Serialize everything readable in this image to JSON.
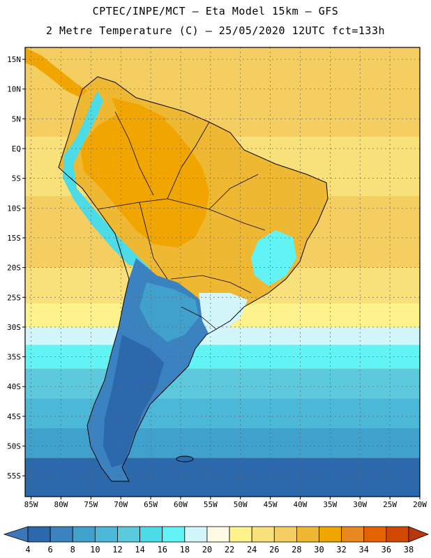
{
  "header": {
    "line1": "CPTEC/INPE/MCT –  Eta Model 15km – GFS",
    "line2": "2 Metre Temperature (C) – 25/05/2020 12UTC fct=133h"
  },
  "axes": {
    "lat_labels": [
      "15N",
      "10N",
      "5N",
      "EQ",
      "5S",
      "10S",
      "15S",
      "20S",
      "25S",
      "30S",
      "35S",
      "40S",
      "45S",
      "50S",
      "55S"
    ],
    "lat_values": [
      15,
      10,
      5,
      0,
      -5,
      -10,
      -15,
      -20,
      -25,
      -30,
      -35,
      -40,
      -45,
      -50,
      -55
    ],
    "lon_labels": [
      "85W",
      "80W",
      "75W",
      "70W",
      "65W",
      "60W",
      "55W",
      "50W",
      "45W",
      "40W",
      "35W",
      "30W",
      "25W",
      "20W"
    ],
    "lon_values": [
      -85,
      -80,
      -75,
      -70,
      -65,
      -60,
      -55,
      -50,
      -45,
      -40,
      -35,
      -30,
      -25,
      -20
    ],
    "lat_range": [
      -58.5,
      17
    ],
    "lon_range": [
      -86,
      -20
    ],
    "grid": "dotted"
  },
  "colorbar": {
    "labels": [
      "4",
      "6",
      "8",
      "10",
      "12",
      "14",
      "16",
      "18",
      "20",
      "22",
      "24",
      "26",
      "28",
      "30",
      "32",
      "34",
      "36",
      "38"
    ],
    "colors": [
      "#3a78b8",
      "#2c68ac",
      "#3b82c0",
      "#40a2cc",
      "#4cb8d8",
      "#5ccadc",
      "#4cdce8",
      "#62f4f4",
      "#d2f6fa",
      "#fefae4",
      "#fef28c",
      "#f8e07a",
      "#f4ce60",
      "#efb832",
      "#f0a500",
      "#ea8820",
      "#e46200",
      "#d04800",
      "#b8380e"
    ]
  },
  "fields": {
    "ocean_bands": [
      {
        "lat_top": 17,
        "lat_bottom": 2,
        "color": "#f4ce60"
      },
      {
        "lat_top": 2,
        "lat_bottom": -8,
        "color": "#f8e07a"
      },
      {
        "lat_top": -8,
        "lat_bottom": -20,
        "color": "#f4ce60"
      },
      {
        "lat_top": -20,
        "lat_bottom": -26,
        "color": "#f8e07a"
      },
      {
        "lat_top": -26,
        "lat_bottom": -30,
        "color": "#fef28c"
      },
      {
        "lat_top": -30,
        "lat_bottom": -33,
        "color": "#d2f6fa"
      },
      {
        "lat_top": -33,
        "lat_bottom": -37,
        "color": "#62f4f4"
      },
      {
        "lat_top": -37,
        "lat_bottom": -42,
        "color": "#5ccadc"
      },
      {
        "lat_top": -42,
        "lat_bottom": -47,
        "color": "#4cb8d8"
      },
      {
        "lat_top": -47,
        "lat_bottom": -52,
        "color": "#40a2cc"
      },
      {
        "lat_top": -52,
        "lat_bottom": -58.5,
        "color": "#2c68ac"
      }
    ],
    "land_hot": "#efb832",
    "land_hotter": "#f0a500",
    "andes": "#4cdce8",
    "south_land": "#3b82c0"
  }
}
